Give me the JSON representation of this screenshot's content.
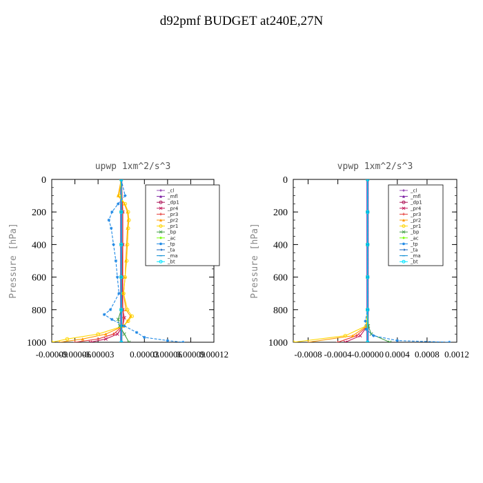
{
  "page_title": "d92pmf  BUDGET at240E,27N",
  "legend_items": [
    {
      "label": "_cl",
      "color": "#9b4fb8",
      "marker": "diamond"
    },
    {
      "label": "_mfl",
      "color": "#7b1fa2",
      "marker": "triangle"
    },
    {
      "label": "_dp1",
      "color": "#ad1457",
      "marker": "circle"
    },
    {
      "label": "_pr4",
      "color": "#c2185b",
      "marker": "x"
    },
    {
      "label": "_pr3",
      "color": "#e53935",
      "marker": "plus"
    },
    {
      "label": "_pr2",
      "color": "#ff9800",
      "marker": "triangle"
    },
    {
      "label": "_pr1",
      "color": "#ffd600",
      "marker": "circle"
    },
    {
      "label": "_bp",
      "color": "#43a047",
      "marker": "x"
    },
    {
      "label": "_ac",
      "color": "#76ff03",
      "marker": "diamond"
    },
    {
      "label": "_tp",
      "color": "#1e88e5",
      "marker": "star"
    },
    {
      "label": "_ta",
      "color": "#1565c0",
      "marker": "arrow"
    },
    {
      "label": "_ma",
      "color": "#0288d1",
      "marker": "dash"
    },
    {
      "label": "_bt",
      "color": "#00e5ff",
      "marker": "circle"
    }
  ],
  "chart_data": [
    {
      "type": "line",
      "title": "upwp   1xm^2/s^3",
      "xlabel": "",
      "ylabel": "Pressure [hPa]",
      "xlim": [
        -9e-05,
        0.00012
      ],
      "ylim": [
        1000,
        0
      ],
      "yticks": [
        0,
        200,
        400,
        600,
        800,
        1000
      ],
      "xticks": [
        -9e-05,
        -6e-05,
        -3e-05,
        3e-05,
        6e-05,
        9e-05,
        0.00012
      ],
      "xtick_labels": [
        "-0.00009",
        "-0.00006",
        "-0.00003",
        "0.00003",
        "0.00006",
        "0.00009",
        "0.00012"
      ],
      "legend_position": "top-right",
      "series": [
        {
          "name": "_cl",
          "pressure": [
            0,
            200,
            400,
            600,
            800,
            1000
          ],
          "values": [
            0,
            0,
            0,
            0,
            0,
            0
          ]
        },
        {
          "name": "_mfl",
          "pressure": [
            0,
            200,
            400,
            600,
            800,
            1000
          ],
          "values": [
            0,
            0,
            0,
            0,
            0,
            0
          ]
        },
        {
          "name": "_dp1",
          "pressure": [
            0,
            200,
            400,
            600,
            800,
            1000
          ],
          "values": [
            0,
            0,
            0,
            0,
            0,
            0
          ]
        },
        {
          "name": "_pr4",
          "pressure": [
            0,
            200,
            400,
            600,
            800,
            850,
            900,
            950,
            980,
            1000
          ],
          "values": [
            0,
            2e-06,
            2e-06,
            1e-06,
            2e-06,
            4e-06,
            2e-06,
            -5e-06,
            -2e-05,
            -4e-05
          ]
        },
        {
          "name": "_pr3",
          "pressure": [
            0,
            200,
            400,
            600,
            800,
            850,
            900,
            950,
            980,
            1000
          ],
          "values": [
            0,
            2e-06,
            2e-06,
            2e-06,
            2e-06,
            3e-06,
            2e-06,
            -1e-05,
            -3e-05,
            -6e-05
          ]
        },
        {
          "name": "_pr2",
          "pressure": [
            0,
            100,
            150,
            200,
            250,
            300,
            400,
            500,
            600,
            700,
            800,
            840,
            870,
            900,
            950,
            980,
            1000
          ],
          "values": [
            0,
            -4e-06,
            4e-06,
            8e-06,
            9e-06,
            8e-06,
            7e-06,
            6e-06,
            5e-06,
            3e-06,
            6e-06,
            1.2e-05,
            8e-06,
            3e-06,
            -2e-05,
            -5e-05,
            -8e-05
          ]
        },
        {
          "name": "_pr1",
          "pressure": [
            0,
            100,
            150,
            200,
            250,
            300,
            400,
            500,
            600,
            700,
            800,
            840,
            870,
            900,
            950,
            980,
            1000
          ],
          "values": [
            0,
            -3e-06,
            5e-06,
            9e-06,
            1e-05,
            9e-06,
            8e-06,
            7e-06,
            5e-06,
            3e-06,
            8e-06,
            1.4e-05,
            9e-06,
            3e-06,
            -3e-05,
            -7e-05,
            -9e-05
          ]
        },
        {
          "name": "_bp",
          "pressure": [
            0,
            200,
            400,
            600,
            800,
            860,
            900,
            950,
            1000
          ],
          "values": [
            0,
            0,
            0,
            0,
            0,
            -4e-06,
            -2e-06,
            4e-06,
            1e-05
          ]
        },
        {
          "name": "_ac",
          "pressure": [
            0,
            200,
            400,
            600,
            800,
            900,
            1000
          ],
          "values": [
            0,
            0,
            0,
            0,
            0,
            0,
            0
          ]
        },
        {
          "name": "_tp",
          "pressure": [
            0,
            100,
            150,
            200,
            250,
            300,
            400,
            500,
            600,
            700,
            800,
            830,
            860,
            900,
            940,
            970,
            990,
            1000
          ],
          "values": [
            0,
            5e-06,
            -4e-06,
            -1.2e-05,
            -1.6e-05,
            -1.3e-05,
            -1e-05,
            -7e-06,
            -5e-06,
            -3e-06,
            -1.4e-05,
            -2.2e-05,
            -1.2e-05,
            4e-06,
            2e-05,
            3e-05,
            6e-05,
            8e-05
          ]
        },
        {
          "name": "_ta",
          "pressure": [
            0,
            200,
            400,
            600,
            800,
            900,
            1000
          ],
          "values": [
            0,
            0,
            0,
            0,
            0,
            0,
            0
          ]
        },
        {
          "name": "_ma",
          "pressure": [
            0,
            200,
            400,
            600,
            800,
            900,
            1000
          ],
          "values": [
            0,
            0,
            0,
            0,
            0,
            0,
            0
          ]
        },
        {
          "name": "_bt",
          "pressure": [
            0,
            200,
            400,
            600,
            800,
            1000
          ],
          "values": [
            0,
            0,
            0,
            0,
            0,
            0
          ]
        }
      ]
    },
    {
      "type": "line",
      "title": "vpwp   1xm^2/s^3",
      "xlabel": "",
      "ylabel": "Pressure [hPa]",
      "xlim": [
        -0.001,
        0.0012
      ],
      "ylim": [
        1000,
        0
      ],
      "yticks": [
        0,
        200,
        400,
        600,
        800,
        1000
      ],
      "xticks": [
        -0.0008,
        -0.0004,
        0,
        0.0004,
        0.0008,
        0.0012
      ],
      "xtick_labels": [
        "-0.0008",
        "-0.0004",
        "-0.00000",
        "0.0004",
        "0.0008",
        "0.0012"
      ],
      "legend_position": "top-right",
      "series": [
        {
          "name": "_cl",
          "pressure": [
            0,
            200,
            400,
            600,
            800,
            1000
          ],
          "values": [
            0,
            0,
            0,
            0,
            0,
            0
          ]
        },
        {
          "name": "_mfl",
          "pressure": [
            0,
            200,
            400,
            600,
            800,
            1000
          ],
          "values": [
            0,
            0,
            0,
            0,
            0,
            0
          ]
        },
        {
          "name": "_dp1",
          "pressure": [
            0,
            200,
            400,
            600,
            800,
            1000
          ],
          "values": [
            0,
            0,
            0,
            0,
            0,
            0
          ]
        },
        {
          "name": "_pr4",
          "pressure": [
            0,
            200,
            400,
            600,
            800,
            900,
            960,
            1000
          ],
          "values": [
            0,
            0,
            0,
            0,
            0,
            0,
            -0.0001,
            -0.0003
          ]
        },
        {
          "name": "_pr3",
          "pressure": [
            0,
            200,
            400,
            600,
            800,
            900,
            960,
            1000
          ],
          "values": [
            0,
            0,
            0,
            0,
            0,
            0,
            -0.00015,
            -0.0004
          ]
        },
        {
          "name": "_pr2",
          "pressure": [
            0,
            200,
            400,
            600,
            800,
            900,
            960,
            1000
          ],
          "values": [
            0,
            0,
            0,
            0,
            0,
            -1e-05,
            -0.0002,
            -0.0008
          ]
        },
        {
          "name": "_pr1",
          "pressure": [
            0,
            200,
            400,
            600,
            800,
            900,
            960,
            1000
          ],
          "values": [
            0,
            0,
            0,
            0,
            0,
            -2e-05,
            -0.0003,
            -0.001
          ]
        },
        {
          "name": "_bp",
          "pressure": [
            0,
            200,
            400,
            600,
            800,
            900,
            950,
            1000
          ],
          "values": [
            0,
            0,
            0,
            0,
            0,
            1e-05,
            5e-05,
            0.0003
          ]
        },
        {
          "name": "_ac",
          "pressure": [
            0,
            200,
            400,
            600,
            800,
            1000
          ],
          "values": [
            0,
            0,
            0,
            0,
            0,
            0
          ]
        },
        {
          "name": "_tp",
          "pressure": [
            0,
            200,
            400,
            600,
            800,
            870,
            920,
            960,
            990,
            1000
          ],
          "values": [
            0,
            0,
            0,
            0,
            0,
            -3e-05,
            -2e-05,
            8e-05,
            0.0004,
            0.0011
          ]
        },
        {
          "name": "_ta",
          "pressure": [
            0,
            200,
            400,
            600,
            800,
            1000
          ],
          "values": [
            0,
            0,
            0,
            0,
            0,
            0
          ]
        },
        {
          "name": "_ma",
          "pressure": [
            0,
            200,
            400,
            600,
            800,
            1000
          ],
          "values": [
            0,
            0,
            0,
            0,
            0,
            0
          ]
        },
        {
          "name": "_bt",
          "pressure": [
            0,
            200,
            400,
            600,
            800,
            1000
          ],
          "values": [
            0,
            0,
            0,
            0,
            0,
            0
          ]
        }
      ]
    }
  ]
}
